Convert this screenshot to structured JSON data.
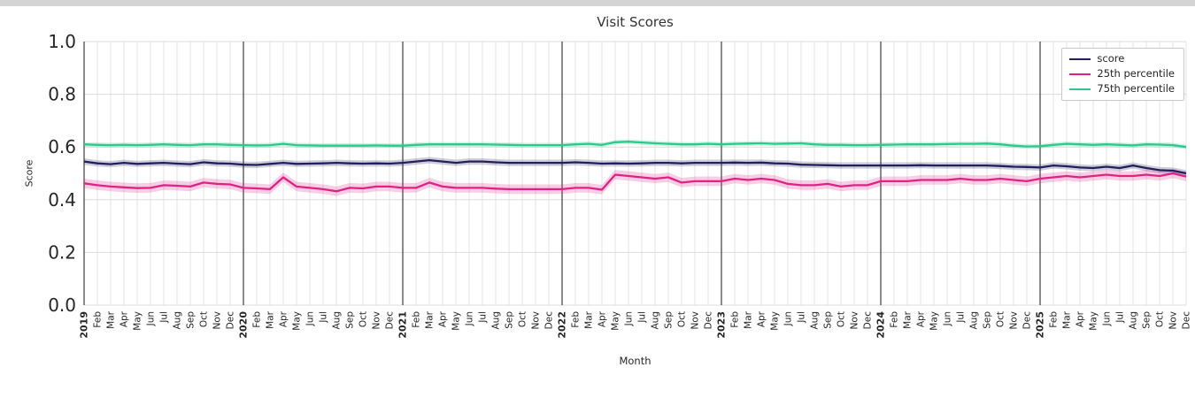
{
  "chart_data": {
    "type": "line",
    "title": "Visit Scores",
    "xlabel": "Month",
    "ylabel": "Score",
    "ylim": [
      0.0,
      1.0
    ],
    "yticks": [
      0.0,
      0.2,
      0.4,
      0.6,
      0.8,
      1.0
    ],
    "grid": true,
    "legend_position": "upper right",
    "categories": [
      "2019",
      "Feb",
      "Mar",
      "Apr",
      "May",
      "Jun",
      "Jul",
      "Aug",
      "Sep",
      "Oct",
      "Nov",
      "Dec",
      "2020",
      "Feb",
      "Mar",
      "Apr",
      "May",
      "Jun",
      "Jul",
      "Aug",
      "Sep",
      "Oct",
      "Nov",
      "Dec",
      "2021",
      "Feb",
      "Mar",
      "Apr",
      "May",
      "Jun",
      "Jul",
      "Aug",
      "Sep",
      "Oct",
      "Nov",
      "Dec",
      "2022",
      "Feb",
      "Mar",
      "Apr",
      "May",
      "Jun",
      "Jul",
      "Aug",
      "Sep",
      "Oct",
      "Nov",
      "Dec",
      "2023",
      "Feb",
      "Mar",
      "Apr",
      "May",
      "Jun",
      "Jul",
      "Aug",
      "Sep",
      "Oct",
      "Nov",
      "Dec",
      "2024",
      "Feb",
      "Mar",
      "Apr",
      "May",
      "Jun",
      "Jul",
      "Aug",
      "Sep",
      "Oct",
      "Nov",
      "Dec",
      "2025",
      "Feb",
      "Mar",
      "Apr",
      "May",
      "Jun",
      "Jul",
      "Aug",
      "Sep",
      "Oct",
      "Nov",
      "Dec"
    ],
    "series": [
      {
        "name": "score",
        "color": "#221f5b",
        "band": 0.012,
        "values": [
          0.545,
          0.538,
          0.535,
          0.54,
          0.536,
          0.538,
          0.54,
          0.537,
          0.535,
          0.542,
          0.538,
          0.537,
          0.533,
          0.532,
          0.536,
          0.54,
          0.536,
          0.537,
          0.538,
          0.54,
          0.538,
          0.537,
          0.538,
          0.537,
          0.54,
          0.545,
          0.55,
          0.545,
          0.54,
          0.545,
          0.545,
          0.542,
          0.54,
          0.54,
          0.54,
          0.54,
          0.54,
          0.542,
          0.54,
          0.537,
          0.538,
          0.537,
          0.538,
          0.54,
          0.54,
          0.538,
          0.54,
          0.54,
          0.54,
          0.541,
          0.54,
          0.541,
          0.538,
          0.537,
          0.533,
          0.532,
          0.531,
          0.53,
          0.53,
          0.53,
          0.53,
          0.53,
          0.53,
          0.531,
          0.53,
          0.53,
          0.53,
          0.53,
          0.53,
          0.528,
          0.525,
          0.524,
          0.522,
          0.53,
          0.527,
          0.522,
          0.52,
          0.525,
          0.52,
          0.53,
          0.52,
          0.512,
          0.51,
          0.5
        ]
      },
      {
        "name": "25th percentile",
        "color": "#e02287",
        "band": 0.018,
        "values": [
          0.462,
          0.455,
          0.45,
          0.447,
          0.444,
          0.445,
          0.455,
          0.453,
          0.45,
          0.465,
          0.46,
          0.458,
          0.445,
          0.443,
          0.44,
          0.485,
          0.45,
          0.445,
          0.44,
          0.432,
          0.445,
          0.443,
          0.45,
          0.45,
          0.445,
          0.445,
          0.465,
          0.45,
          0.445,
          0.445,
          0.445,
          0.442,
          0.44,
          0.44,
          0.44,
          0.44,
          0.44,
          0.445,
          0.445,
          0.438,
          0.495,
          0.49,
          0.485,
          0.48,
          0.485,
          0.465,
          0.47,
          0.47,
          0.47,
          0.48,
          0.475,
          0.48,
          0.475,
          0.46,
          0.455,
          0.455,
          0.46,
          0.45,
          0.455,
          0.455,
          0.47,
          0.47,
          0.47,
          0.475,
          0.475,
          0.475,
          0.48,
          0.475,
          0.475,
          0.48,
          0.475,
          0.47,
          0.48,
          0.485,
          0.49,
          0.485,
          0.49,
          0.495,
          0.49,
          0.49,
          0.495,
          0.49,
          0.5,
          0.488
        ]
      },
      {
        "name": "75th percentile",
        "color": "#2bc98b",
        "band": 0.009,
        "values": [
          0.61,
          0.608,
          0.607,
          0.608,
          0.607,
          0.608,
          0.61,
          0.608,
          0.607,
          0.61,
          0.61,
          0.608,
          0.607,
          0.606,
          0.607,
          0.612,
          0.607,
          0.606,
          0.605,
          0.605,
          0.605,
          0.605,
          0.606,
          0.605,
          0.605,
          0.608,
          0.61,
          0.61,
          0.61,
          0.61,
          0.61,
          0.609,
          0.608,
          0.607,
          0.607,
          0.607,
          0.607,
          0.61,
          0.612,
          0.608,
          0.618,
          0.62,
          0.617,
          0.614,
          0.612,
          0.61,
          0.61,
          0.612,
          0.61,
          0.612,
          0.613,
          0.614,
          0.612,
          0.613,
          0.614,
          0.61,
          0.608,
          0.608,
          0.607,
          0.607,
          0.608,
          0.609,
          0.61,
          0.61,
          0.61,
          0.611,
          0.612,
          0.612,
          0.613,
          0.61,
          0.605,
          0.602,
          0.603,
          0.608,
          0.612,
          0.61,
          0.608,
          0.61,
          0.608,
          0.606,
          0.61,
          0.609,
          0.607,
          0.6
        ]
      }
    ],
    "colors": {
      "grid_minor": "#dcdcdc",
      "grid_year": "#2b2b2b",
      "tick_text": "#262626"
    }
  }
}
